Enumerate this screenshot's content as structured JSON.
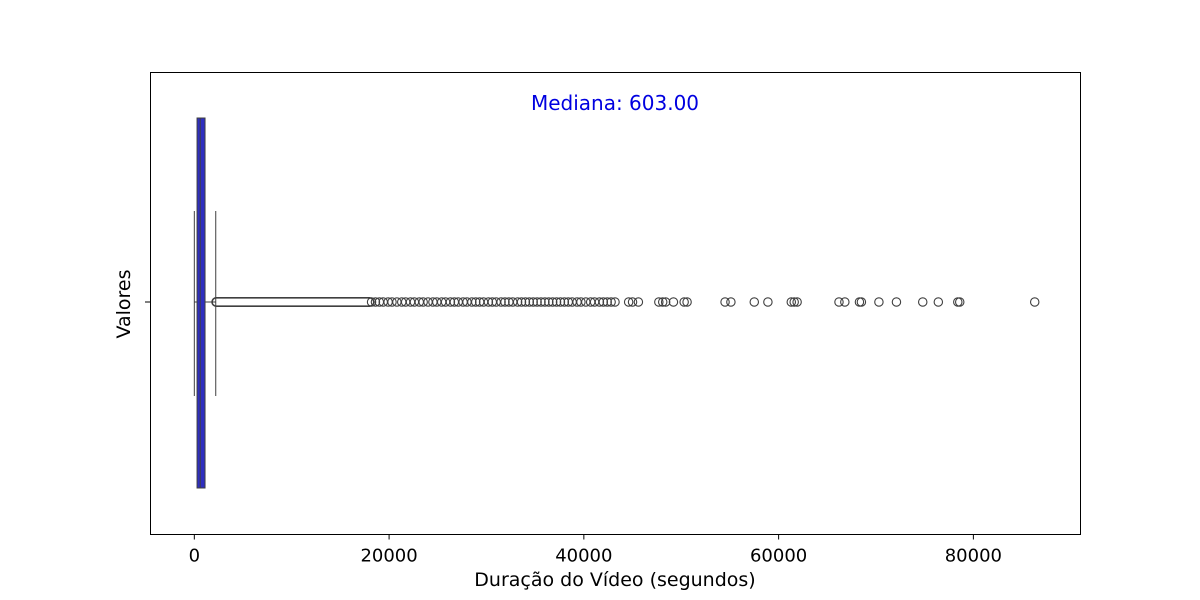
{
  "chart_data": {
    "type": "boxplot",
    "orientation": "horizontal",
    "xlabel": "Duração do Vídeo (segundos)",
    "ylabel": "Valores",
    "xlim": [
      -4500,
      91000
    ],
    "xticks": [
      0,
      20000,
      40000,
      60000,
      80000
    ],
    "xtick_labels": [
      "0",
      "20000",
      "40000",
      "60000",
      "80000"
    ],
    "grid": false,
    "box": {
      "whisker_low": 0,
      "q1": 280,
      "median": 603,
      "q3": 1100,
      "whisker_high": 2200,
      "color": "#2e2ec0",
      "outline_color": "#3f3f3f"
    },
    "outliers_dense_range": [
      2250,
      18000
    ],
    "outliers": [
      18200,
      18600,
      19000,
      19400,
      19900,
      20300,
      20800,
      21300,
      21700,
      22200,
      22600,
      23100,
      23500,
      24000,
      24500,
      24900,
      25400,
      25800,
      26300,
      26700,
      27100,
      27600,
      28000,
      28500,
      28900,
      29300,
      29700,
      30200,
      30600,
      31000,
      31500,
      31900,
      32300,
      32700,
      33200,
      33600,
      34000,
      34400,
      34800,
      35200,
      35600,
      36000,
      36400,
      36800,
      37200,
      37600,
      38000,
      38400,
      38800,
      39300,
      39700,
      40200,
      40700,
      41100,
      41600,
      42000,
      42400,
      42800,
      43200,
      44600,
      45000,
      45600,
      47700,
      48100,
      48400,
      49200,
      50300,
      50600,
      54500,
      55100,
      57500,
      58900,
      61300,
      61600,
      61900,
      66200,
      66800,
      68300,
      68500,
      70300,
      72100,
      74800,
      76400,
      78400,
      78600,
      86300
    ],
    "annotation": {
      "text": "Mediana: 603.00",
      "color": "#0000e0"
    }
  }
}
